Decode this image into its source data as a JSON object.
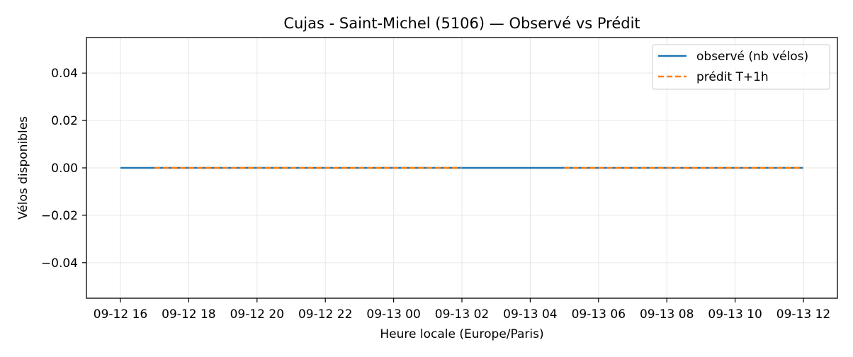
{
  "chart_data": {
    "type": "line",
    "title": "Cujas - Saint-Michel (5106) — Observé vs Prédit",
    "xlabel": "Heure locale (Europe/Paris)",
    "ylabel": "Vélos disponibles",
    "x_ticks": [
      "09-12 16",
      "09-12 18",
      "09-12 20",
      "09-12 22",
      "09-13 00",
      "09-13 02",
      "09-13 04",
      "09-13 06",
      "09-13 08",
      "09-13 10",
      "09-13 12"
    ],
    "x_range": [
      "09-12 16:00",
      "09-13 12:00"
    ],
    "y_ticks": [
      "0.04",
      "0.02",
      "0.00",
      "−0.02",
      "−0.04"
    ],
    "y_tick_values": [
      0.04,
      0.02,
      0,
      -0.02,
      -0.04
    ],
    "ylim": [
      -0.055,
      0.055
    ],
    "grid": true,
    "legend_position": "top-right",
    "series": [
      {
        "name": "observé (nb vélos)",
        "color": "#1f77b4",
        "style": "solid",
        "points": [
          [
            "09-12 16:00",
            0
          ],
          [
            "09-13 12:00",
            0
          ]
        ]
      },
      {
        "name": "prédit T+1h",
        "color": "#ff7f0e",
        "style": "dashed",
        "segments": [
          [
            [
              "09-12 17:00",
              0
            ],
            [
              "09-13 02:00",
              0
            ]
          ],
          [
            [
              "09-13 05:00",
              0
            ],
            [
              "09-13 12:00",
              0
            ]
          ]
        ]
      }
    ]
  }
}
